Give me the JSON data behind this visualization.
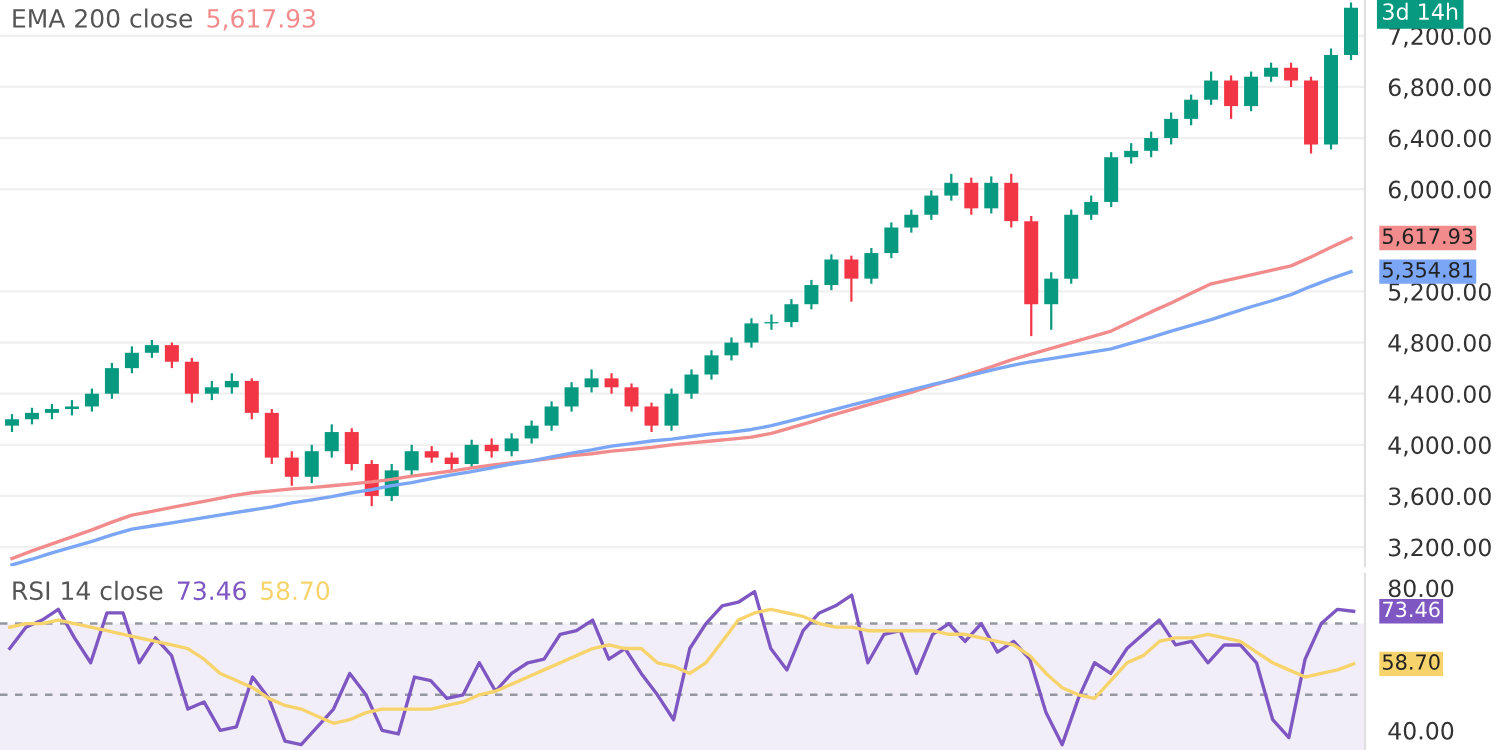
{
  "chart_data": [
    {
      "type": "candlestick",
      "ylim": [
        3050,
        7480
      ],
      "tick_labels": "y",
      "grid": "y",
      "categories": [
        null,
        null,
        null,
        null,
        null,
        null,
        null,
        null,
        null,
        null,
        null,
        null,
        null,
        null,
        null,
        null,
        null,
        null,
        null,
        null,
        null,
        null,
        null,
        null,
        null,
        null,
        null,
        null,
        null,
        null,
        null,
        null,
        null,
        null,
        null,
        null,
        null,
        null,
        null,
        null,
        null,
        null,
        null,
        null,
        null,
        null,
        null,
        null,
        null,
        null,
        null,
        null,
        null,
        null,
        null,
        null,
        null,
        null,
        null,
        null,
        null,
        null,
        null,
        null,
        null,
        null,
        null,
        null
      ],
      "yticks": [
        {
          "value": 3200,
          "label": "3,200.00"
        },
        {
          "value": 3600,
          "label": "3,600.00"
        },
        {
          "value": 4000,
          "label": "4,000.00"
        },
        {
          "value": 4400,
          "label": "4,400.00"
        },
        {
          "value": 4800,
          "label": "4,800.00"
        },
        {
          "value": 5200,
          "label": "5,200.00"
        },
        {
          "value": 6000,
          "label": "6,000.00"
        },
        {
          "value": 6400,
          "label": "6,400.00"
        },
        {
          "value": 6800,
          "label": "6,800.00"
        },
        {
          "value": 7200,
          "label": "7,200.00"
        }
      ],
      "annotations": [
        "3d 14h"
      ],
      "ohlc": [
        [
          4150,
          4240,
          4100,
          4200
        ],
        [
          4200,
          4290,
          4160,
          4250
        ],
        [
          4250,
          4320,
          4200,
          4280
        ],
        [
          4280,
          4350,
          4230,
          4300
        ],
        [
          4300,
          4440,
          4260,
          4400
        ],
        [
          4400,
          4640,
          4360,
          4600
        ],
        [
          4600,
          4770,
          4560,
          4720
        ],
        [
          4720,
          4820,
          4680,
          4780
        ],
        [
          4780,
          4800,
          4600,
          4650
        ],
        [
          4650,
          4680,
          4330,
          4400
        ],
        [
          4400,
          4500,
          4350,
          4450
        ],
        [
          4450,
          4560,
          4400,
          4500
        ],
        [
          4500,
          4520,
          4200,
          4250
        ],
        [
          4250,
          4280,
          3850,
          3900
        ],
        [
          3900,
          3950,
          3680,
          3750
        ],
        [
          3750,
          4000,
          3700,
          3950
        ],
        [
          3950,
          4160,
          3900,
          4100
        ],
        [
          4100,
          4130,
          3800,
          3850
        ],
        [
          3850,
          3880,
          3520,
          3600
        ],
        [
          3600,
          3850,
          3560,
          3800
        ],
        [
          3800,
          4000,
          3760,
          3950
        ],
        [
          3950,
          3990,
          3860,
          3900
        ],
        [
          3900,
          3940,
          3800,
          3850
        ],
        [
          3850,
          4040,
          3810,
          4000
        ],
        [
          4000,
          4050,
          3900,
          3950
        ],
        [
          3950,
          4090,
          3910,
          4050
        ],
        [
          4050,
          4190,
          4010,
          4150
        ],
        [
          4150,
          4340,
          4110,
          4300
        ],
        [
          4300,
          4490,
          4260,
          4450
        ],
        [
          4450,
          4590,
          4410,
          4520
        ],
        [
          4520,
          4560,
          4400,
          4450
        ],
        [
          4450,
          4480,
          4260,
          4300
        ],
        [
          4300,
          4330,
          4100,
          4150
        ],
        [
          4150,
          4440,
          4110,
          4400
        ],
        [
          4400,
          4590,
          4360,
          4550
        ],
        [
          4550,
          4740,
          4510,
          4700
        ],
        [
          4700,
          4840,
          4660,
          4800
        ],
        [
          4800,
          4990,
          4760,
          4950
        ],
        [
          4950,
          5020,
          4900,
          4960
        ],
        [
          4960,
          5140,
          4920,
          5100
        ],
        [
          5100,
          5290,
          5060,
          5250
        ],
        [
          5250,
          5490,
          5210,
          5450
        ],
        [
          5450,
          5480,
          5120,
          5300
        ],
        [
          5300,
          5540,
          5260,
          5500
        ],
        [
          5500,
          5740,
          5460,
          5700
        ],
        [
          5700,
          5840,
          5660,
          5800
        ],
        [
          5800,
          5990,
          5760,
          5950
        ],
        [
          5950,
          6120,
          5910,
          6050
        ],
        [
          6050,
          6090,
          5800,
          5850
        ],
        [
          5850,
          6100,
          5810,
          6050
        ],
        [
          6050,
          6120,
          5700,
          5750
        ],
        [
          5750,
          5790,
          4850,
          5100
        ],
        [
          5100,
          5350,
          4900,
          5300
        ],
        [
          5300,
          5840,
          5260,
          5800
        ],
        [
          5800,
          5950,
          5760,
          5900
        ],
        [
          5900,
          6290,
          5860,
          6250
        ],
        [
          6250,
          6360,
          6200,
          6300
        ],
        [
          6300,
          6450,
          6250,
          6400
        ],
        [
          6400,
          6600,
          6350,
          6550
        ],
        [
          6550,
          6740,
          6500,
          6700
        ],
        [
          6700,
          6920,
          6660,
          6850
        ],
        [
          6850,
          6890,
          6550,
          6650
        ],
        [
          6650,
          6920,
          6610,
          6880
        ],
        [
          6880,
          6990,
          6840,
          6950
        ],
        [
          6950,
          6990,
          6800,
          6850
        ],
        [
          6850,
          6880,
          6280,
          6350
        ],
        [
          6350,
          7100,
          6310,
          7050
        ],
        [
          7050,
          7460,
          7010,
          7420
        ]
      ],
      "colors": [
        "#089981",
        "#089981",
        "#089981",
        "#089981",
        "#089981",
        "#089981",
        "#089981",
        "#089981",
        "#f23645",
        "#f23645",
        "#089981",
        "#089981",
        "#f23645",
        "#f23645",
        "#f23645",
        "#089981",
        "#089981",
        "#f23645",
        "#f23645",
        "#089981",
        "#089981",
        "#f23645",
        "#f23645",
        "#089981",
        "#f23645",
        "#089981",
        "#089981",
        "#089981",
        "#089981",
        "#089981",
        "#f23645",
        "#f23645",
        "#f23645",
        "#089981",
        "#089981",
        "#089981",
        "#089981",
        "#089981",
        "#089981",
        "#089981",
        "#089981",
        "#089981",
        "#f23645",
        "#089981",
        "#089981",
        "#089981",
        "#089981",
        "#089981",
        "#f23645",
        "#089981",
        "#f23645",
        "#f23645",
        "#089981",
        "#089981",
        "#089981",
        "#089981",
        "#089981",
        "#089981",
        "#089981",
        "#089981",
        "#089981",
        "#f23645",
        "#089981",
        "#089981",
        "#f23645",
        "#f23645",
        "#089981",
        "#089981"
      ]
    },
    {
      "type": "line",
      "title": "EMA 200 close",
      "ylim": [
        3050,
        7480
      ],
      "tick_labels": false,
      "categories": [
        null,
        null,
        null,
        null,
        null,
        null,
        null,
        null,
        null,
        null,
        null,
        null,
        null,
        null,
        null,
        null,
        null,
        null,
        null,
        null,
        null,
        null,
        null,
        null,
        null,
        null,
        null,
        null,
        null,
        null,
        null,
        null,
        null,
        null,
        null,
        null,
        null,
        null,
        null,
        null,
        null,
        null,
        null,
        null,
        null,
        null,
        null,
        null,
        null,
        null,
        null,
        null,
        null,
        null,
        null,
        null,
        null,
        null,
        null,
        null,
        null,
        null,
        null,
        null,
        null,
        null,
        null,
        null
      ],
      "annotations": [
        "5,617.93",
        "5,617.93",
        "5,354.81"
      ],
      "series": [
        {
          "color": "#f28b8b",
          "values": [
            3110,
            3170,
            3225,
            3280,
            3335,
            3395,
            3450,
            3480,
            3510,
            3540,
            3570,
            3600,
            3625,
            3640,
            3655,
            3665,
            3680,
            3695,
            3710,
            3730,
            3755,
            3775,
            3795,
            3820,
            3840,
            3860,
            3875,
            3895,
            3915,
            3930,
            3950,
            3965,
            3980,
            4000,
            4015,
            4030,
            4045,
            4060,
            4090,
            4135,
            4180,
            4230,
            4275,
            4320,
            4365,
            4410,
            4460,
            4510,
            4560,
            4610,
            4665,
            4710,
            4755,
            4800,
            4845,
            4890,
            4965,
            5040,
            5110,
            5185,
            5260,
            5295,
            5330,
            5365,
            5400,
            5470,
            5545,
            5617.93
          ]
        },
        {
          "color": "#7aa6f5",
          "values": [
            3060,
            3105,
            3155,
            3200,
            3245,
            3295,
            3340,
            3365,
            3390,
            3415,
            3440,
            3465,
            3490,
            3515,
            3545,
            3570,
            3595,
            3625,
            3650,
            3680,
            3705,
            3735,
            3765,
            3790,
            3820,
            3850,
            3875,
            3905,
            3935,
            3960,
            3990,
            4010,
            4030,
            4045,
            4065,
            4085,
            4100,
            4120,
            4150,
            4190,
            4230,
            4270,
            4310,
            4350,
            4390,
            4430,
            4470,
            4505,
            4545,
            4585,
            4620,
            4650,
            4675,
            4700,
            4725,
            4750,
            4795,
            4840,
            4890,
            4935,
            4980,
            5030,
            5080,
            5125,
            5175,
            5240,
            5300,
            5354.81
          ]
        }
      ]
    },
    {
      "type": "line",
      "title": "RSI 14 close",
      "ylim": [
        34.5,
        84
      ],
      "tick_labels": "y",
      "categories": [
        null,
        null,
        null,
        null,
        null,
        null,
        null,
        null,
        null,
        null,
        null,
        null,
        null,
        null,
        null,
        null,
        null,
        null,
        null,
        null,
        null,
        null,
        null,
        null,
        null,
        null,
        null,
        null,
        null,
        null,
        null,
        null,
        null,
        null,
        null,
        null,
        null,
        null,
        null,
        null,
        null,
        null,
        null,
        null,
        null,
        null,
        null,
        null,
        null,
        null,
        null,
        null,
        null,
        null,
        null,
        null,
        null,
        null,
        null,
        null,
        null,
        null,
        null,
        null,
        null,
        null,
        null,
        null,
        null,
        null,
        null,
        null,
        null,
        null,
        null,
        null,
        null,
        null,
        null,
        null,
        null,
        null,
        null,
        null
      ],
      "yticks": [
        {
          "value": 40,
          "label": "40.00"
        },
        {
          "value": 80,
          "label": "80.00"
        }
      ],
      "ref_lines": [
        {
          "axis": "y",
          "value": 70,
          "color": "#9598a1",
          "line_style": "dashed"
        },
        {
          "axis": "y",
          "value": 50,
          "color": "#9598a1",
          "line_style": "dashed"
        }
      ],
      "bands": [
        {
          "axis": "y",
          "from": 30,
          "to": 70,
          "color": "#7e57c2"
        }
      ],
      "annotations": [
        "73.46",
        "58.70",
        "73.46",
        "58.70"
      ],
      "series": [
        {
          "color": "#7e57c2",
          "values": [
            63,
            69,
            71,
            74,
            66,
            59,
            73,
            73,
            59,
            66,
            61,
            46,
            48,
            40,
            41,
            55,
            49,
            37,
            36,
            41,
            46,
            56,
            50,
            40,
            39,
            55,
            54,
            49,
            50,
            59,
            51,
            56,
            59,
            60,
            67,
            68,
            71,
            60,
            63,
            56,
            50,
            43,
            63,
            70,
            75,
            76,
            79,
            63,
            57,
            68,
            73,
            75,
            78,
            59,
            67,
            68,
            56,
            67,
            70,
            65,
            70,
            62,
            65,
            60,
            45,
            36,
            49,
            59,
            56,
            63,
            67,
            71,
            64,
            65,
            59,
            64,
            64,
            59,
            43,
            38,
            60,
            70,
            74,
            73.46
          ]
        },
        {
          "color": "#f7d36b",
          "values": [
            69,
            70,
            70,
            71,
            70,
            69,
            68,
            67,
            66,
            65,
            64,
            63,
            60,
            56,
            54,
            52,
            49,
            47,
            46,
            44,
            42,
            43,
            45,
            46,
            46,
            46,
            46,
            47,
            48,
            50,
            51,
            53,
            55,
            57,
            59,
            61,
            63,
            64,
            63,
            63,
            59,
            58,
            56,
            59,
            65,
            71,
            73,
            74,
            73,
            72,
            70,
            69,
            69,
            68,
            68,
            68,
            68,
            68,
            67,
            67,
            66,
            65,
            64,
            61,
            56,
            52,
            50,
            49,
            54,
            59,
            61,
            65,
            66,
            66,
            67,
            66,
            65,
            62,
            59,
            57,
            55,
            56,
            57,
            58.7
          ]
        }
      ]
    }
  ]
}
